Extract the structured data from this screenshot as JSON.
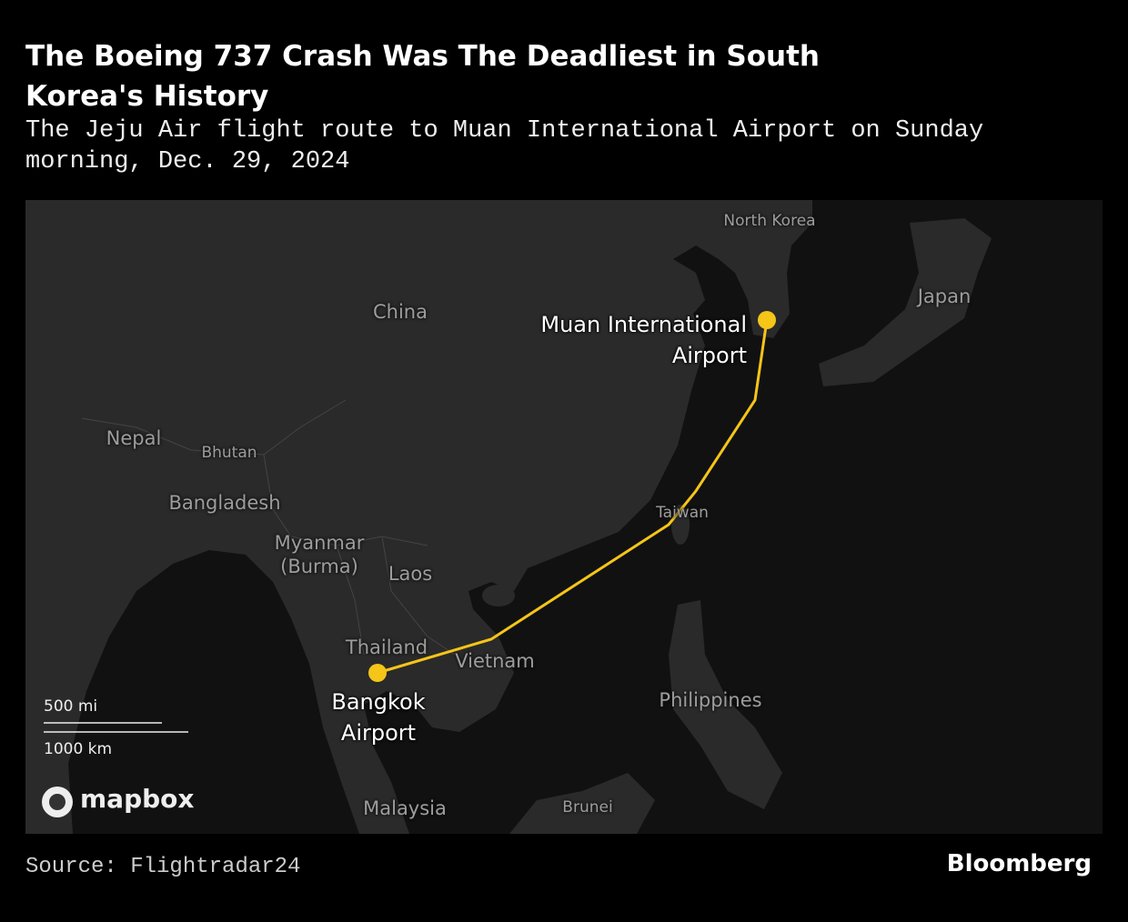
{
  "header": {
    "title": "The Boeing 737 Crash Was The Deadliest in South Korea's History",
    "subtitle": "The Jeju Air flight route to Muan International Airport on Sunday morning, Dec. 29, 2024"
  },
  "map": {
    "places": [
      "North Korea",
      "Japan",
      "China",
      "Nepal",
      "Bhutan",
      "Bangladesh",
      "Myanmar\n(Burma)",
      "Laos",
      "Thailand",
      "Vietnam",
      "Taiwan",
      "Philippines",
      "Malaysia",
      "Brunei"
    ],
    "airports": [
      "Muan International\nAirport",
      "Bangkok\nAirport"
    ],
    "scale": [
      "500 mi",
      "1000 km"
    ],
    "attribution": "mapbox"
  },
  "footer": {
    "source": "Source: Flightradar24",
    "brand": "Bloomberg"
  }
}
